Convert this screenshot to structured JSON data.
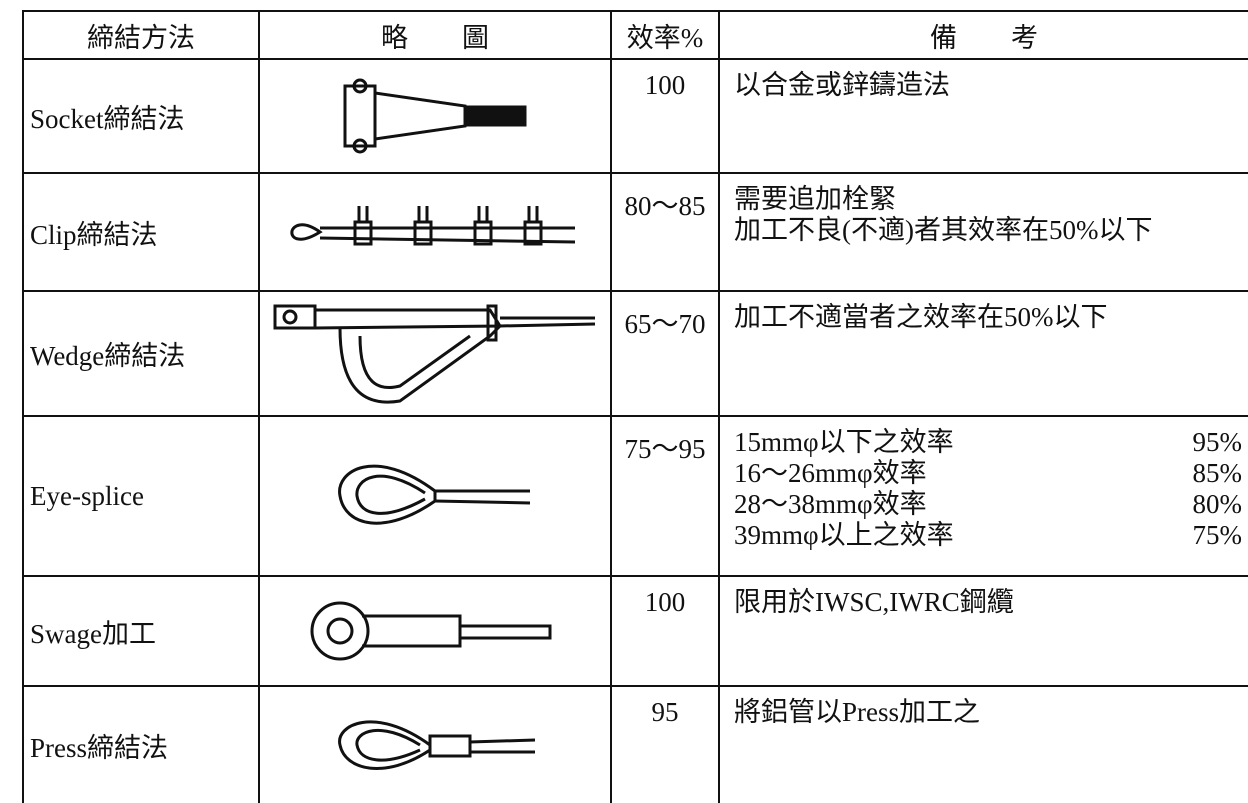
{
  "header": {
    "method": "締結方法",
    "sketch": "略　　圖",
    "efficiency": "效率%",
    "remarks": "備　　考"
  },
  "rows": [
    {
      "method": "Socket締結法",
      "efficiency": "100",
      "remarks": [
        "以合金或鋅鑄造法"
      ]
    },
    {
      "method": "Clip締結法",
      "efficiency": "80～85",
      "remarks": [
        "需要追加栓緊",
        "加工不良(不適)者其效率在50%以下"
      ]
    },
    {
      "method": "Wedge締結法",
      "efficiency": "65～70",
      "remarks": [
        "加工不適當者之效率在50%以下"
      ]
    },
    {
      "method": "Eye-splice",
      "efficiency": "75～95",
      "remarks": [
        {
          "text": "15mmφ以下之效率",
          "value": "95%"
        },
        {
          "text": "16～26mmφ效率",
          "value": "85%"
        },
        {
          "text": "28～38mmφ效率",
          "value": "80%"
        },
        {
          "text": "39mmφ以上之效率",
          "value": "75%"
        }
      ]
    },
    {
      "method": "Swage加工",
      "efficiency": "100",
      "remarks": [
        "限用於IWSC,IWRC鋼纜"
      ]
    },
    {
      "method": "Press締結法",
      "efficiency": "95",
      "remarks": [
        "將鋁管以Press加工之"
      ]
    }
  ]
}
